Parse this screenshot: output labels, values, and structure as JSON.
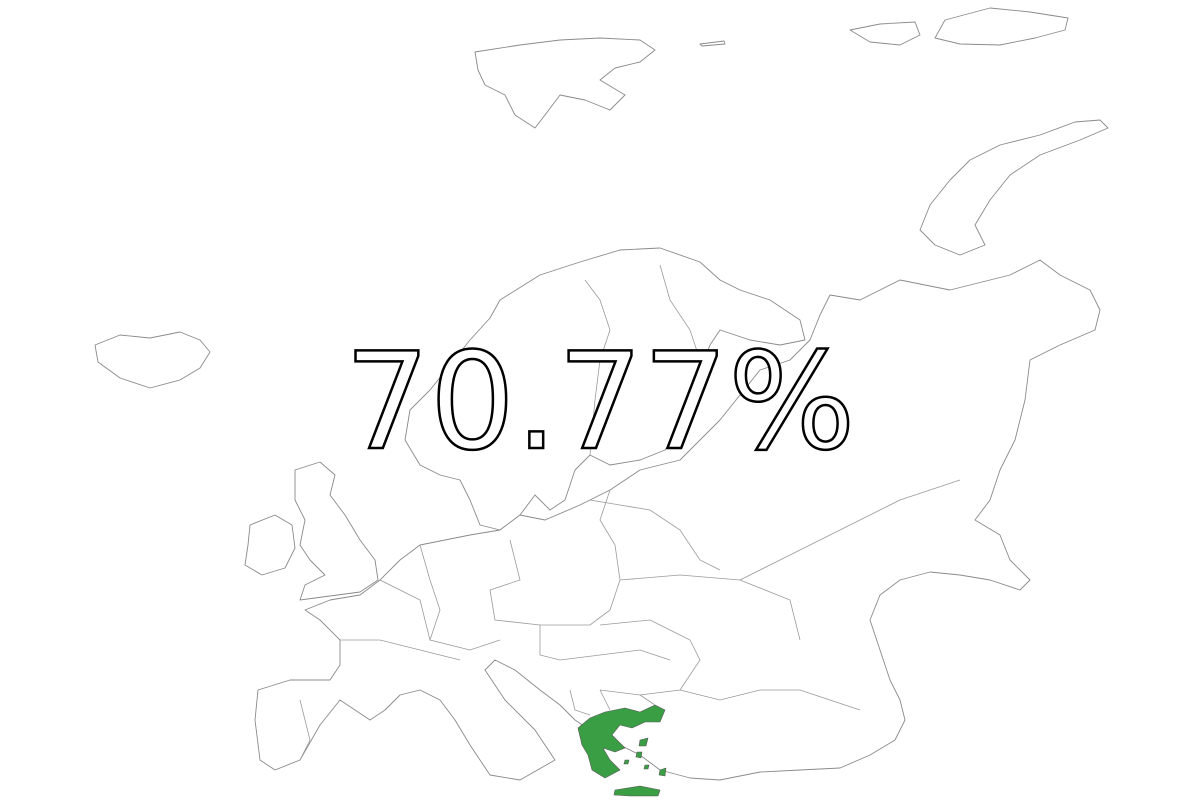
{
  "value_label": "70.77%",
  "highlighted_country": "Greece",
  "colors": {
    "highlight": "#3a9e44",
    "border": "#8a8a8a",
    "background": "#ffffff",
    "label_stroke": "#000000"
  }
}
